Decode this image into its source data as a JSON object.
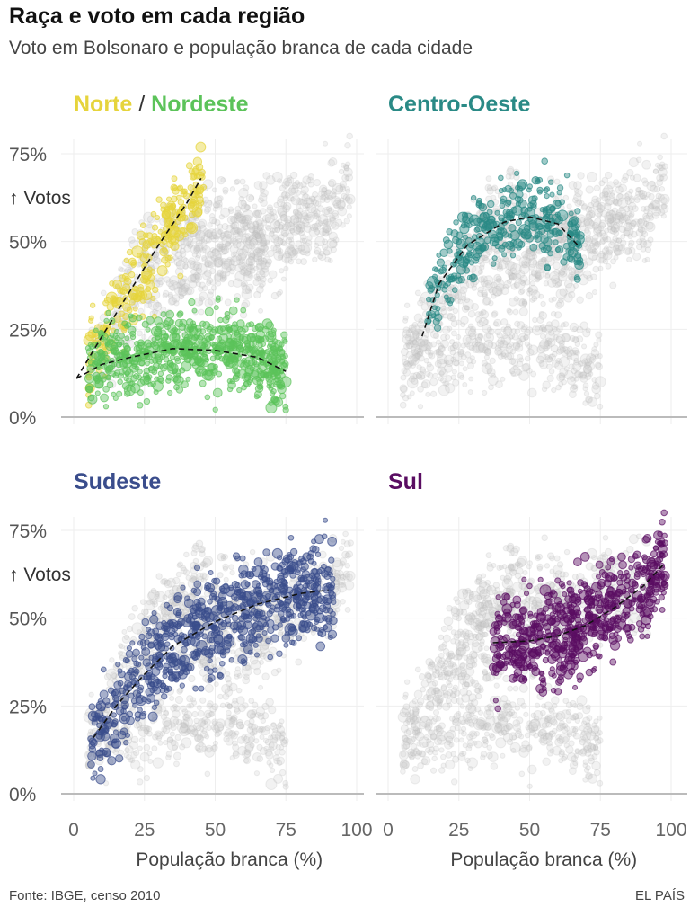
{
  "title": "Raça e voto em cada região",
  "subtitle": "Voto em Bolsonaro e população branca de cada cidade",
  "source": "Fonte: IBGE, censo 2010",
  "brand": "EL PAÍS",
  "chart_data": {
    "type": "scatter",
    "xlabel": "População branca (%)",
    "ylabel": "↑ Votos",
    "xlim": [
      0,
      100
    ],
    "ylim": [
      0,
      80
    ],
    "xticks": [
      "0",
      "25",
      "50",
      "75",
      "100"
    ],
    "yticks": [
      "0%",
      "25%",
      "50%",
      "75%"
    ],
    "grid": true,
    "panels": [
      {
        "title_parts": [
          {
            "text": "Norte",
            "color": "#e6d43c"
          },
          {
            "text": " / ",
            "color": "#333333"
          },
          {
            "text": "Nordeste",
            "color": "#5cc35a"
          }
        ],
        "series": [
          {
            "name": "Norte",
            "color": "#e6d43c",
            "x_range": [
              5,
              46
            ],
            "y_spread": 9,
            "n": 260,
            "trend": [
              [
                1,
                11
              ],
              [
                10,
                23
              ],
              [
                20,
                36
              ],
              [
                30,
                49
              ],
              [
                40,
                61
              ],
              [
                45,
                68
              ]
            ]
          },
          {
            "name": "Nordeste",
            "color": "#5cc35a",
            "x_range": [
              5,
              75
            ],
            "y_spread": 8,
            "n": 700,
            "trend": [
              [
                1,
                11
              ],
              [
                10,
                15
              ],
              [
                20,
                17
              ],
              [
                35,
                19.5
              ],
              [
                50,
                19
              ],
              [
                65,
                17
              ],
              [
                75,
                13
              ]
            ]
          }
        ]
      },
      {
        "title_parts": [
          {
            "text": "Centro-Oeste",
            "color": "#2a8a86"
          }
        ],
        "series": [
          {
            "name": "Centro-Oeste",
            "color": "#2a8a86",
            "x_range": [
              14,
              68
            ],
            "y_spread": 8,
            "n": 350,
            "trend": [
              [
                12,
                23
              ],
              [
                18,
                38
              ],
              [
                28,
                49
              ],
              [
                41,
                55.5
              ],
              [
                50,
                57
              ],
              [
                60,
                55
              ],
              [
                67,
                49
              ]
            ]
          }
        ]
      },
      {
        "title_parts": [
          {
            "text": "Sudeste",
            "color": "#3a4d8c"
          }
        ],
        "series": [
          {
            "name": "Sudeste",
            "color": "#3a4d8c",
            "x_range": [
              6,
              92
            ],
            "y_spread": 10,
            "n": 800,
            "trend": [
              [
                7,
                16
              ],
              [
                15,
                25
              ],
              [
                25,
                34
              ],
              [
                35,
                42
              ],
              [
                50,
                49
              ],
              [
                65,
                54
              ],
              [
                80,
                57
              ],
              [
                90,
                58
              ]
            ]
          }
        ]
      },
      {
        "title_parts": [
          {
            "text": "Sul",
            "color": "#5a0d62"
          }
        ],
        "series": [
          {
            "name": "Sul",
            "color": "#5a0d62",
            "x_range": [
              37,
              98
            ],
            "y_spread": 10,
            "n": 650,
            "trend": [
              [
                37,
                43
              ],
              [
                50,
                43.5
              ],
              [
                60,
                45
              ],
              [
                70,
                48
              ],
              [
                80,
                53
              ],
              [
                90,
                59
              ],
              [
                97,
                65
              ]
            ]
          }
        ]
      }
    ]
  }
}
